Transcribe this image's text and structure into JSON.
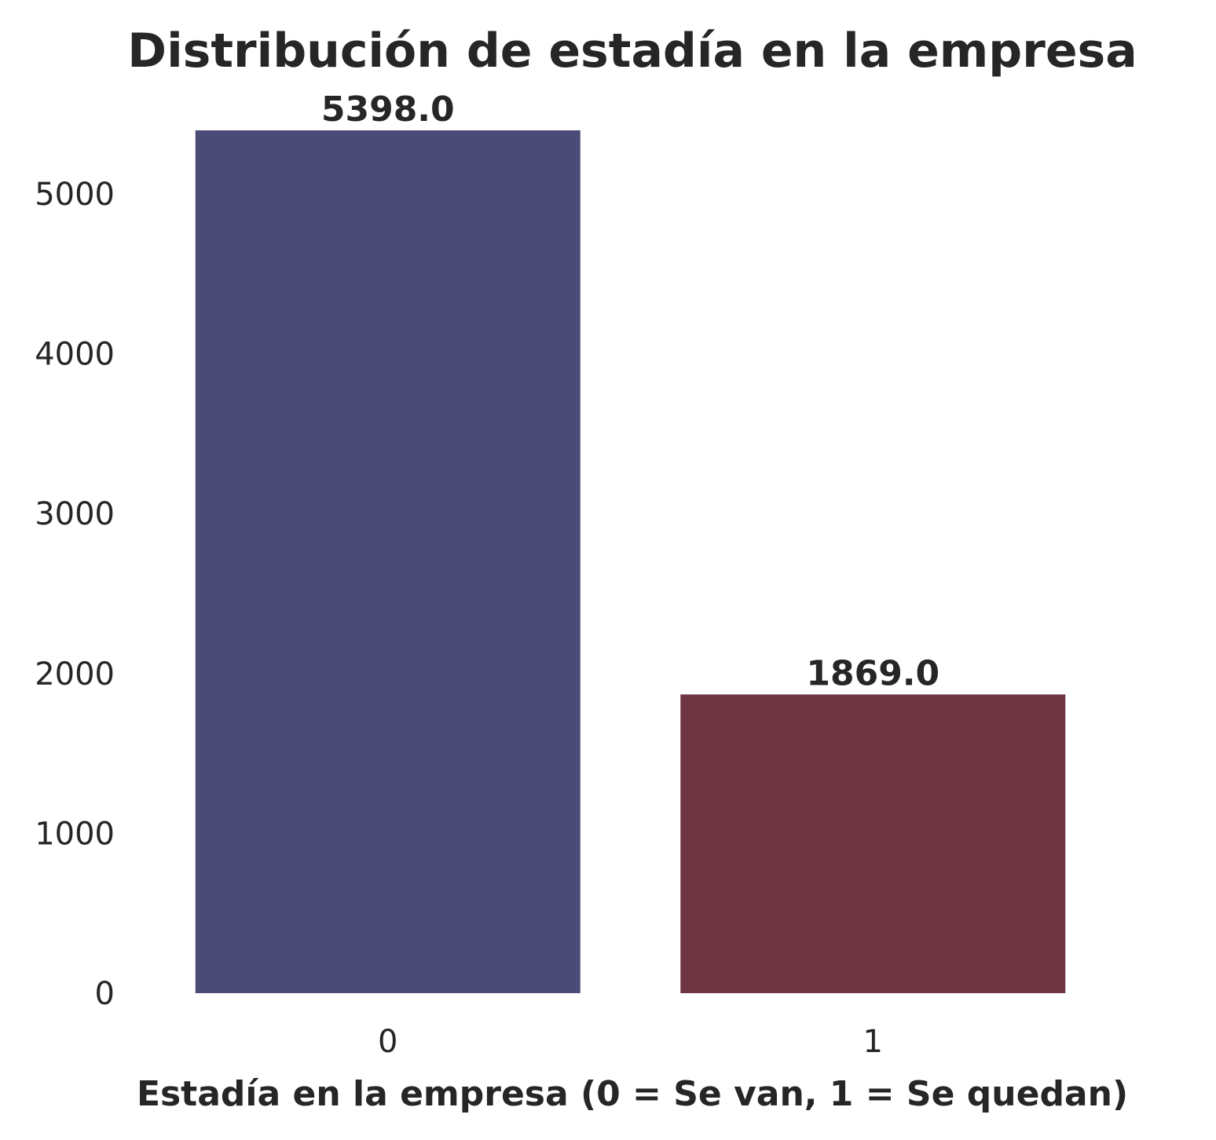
{
  "chart_data": {
    "type": "bar",
    "title": "Distribución de estadía en la empresa",
    "xlabel": "Estadía en la empresa (0 = Se van, 1 = Se quedan)",
    "ylabel": "",
    "categories": [
      "0",
      "1"
    ],
    "values": [
      5398,
      1869
    ],
    "value_labels": [
      "5398.0",
      "1869.0"
    ],
    "colors": [
      "#4b4b78",
      "#6e3643"
    ],
    "yticks": [
      0,
      1000,
      2000,
      3000,
      4000,
      5000
    ],
    "ytick_labels": [
      "0",
      "1000",
      "2000",
      "3000",
      "4000",
      "5000"
    ],
    "ylim": [
      0,
      5398
    ],
    "grid": false,
    "legend": "none"
  }
}
